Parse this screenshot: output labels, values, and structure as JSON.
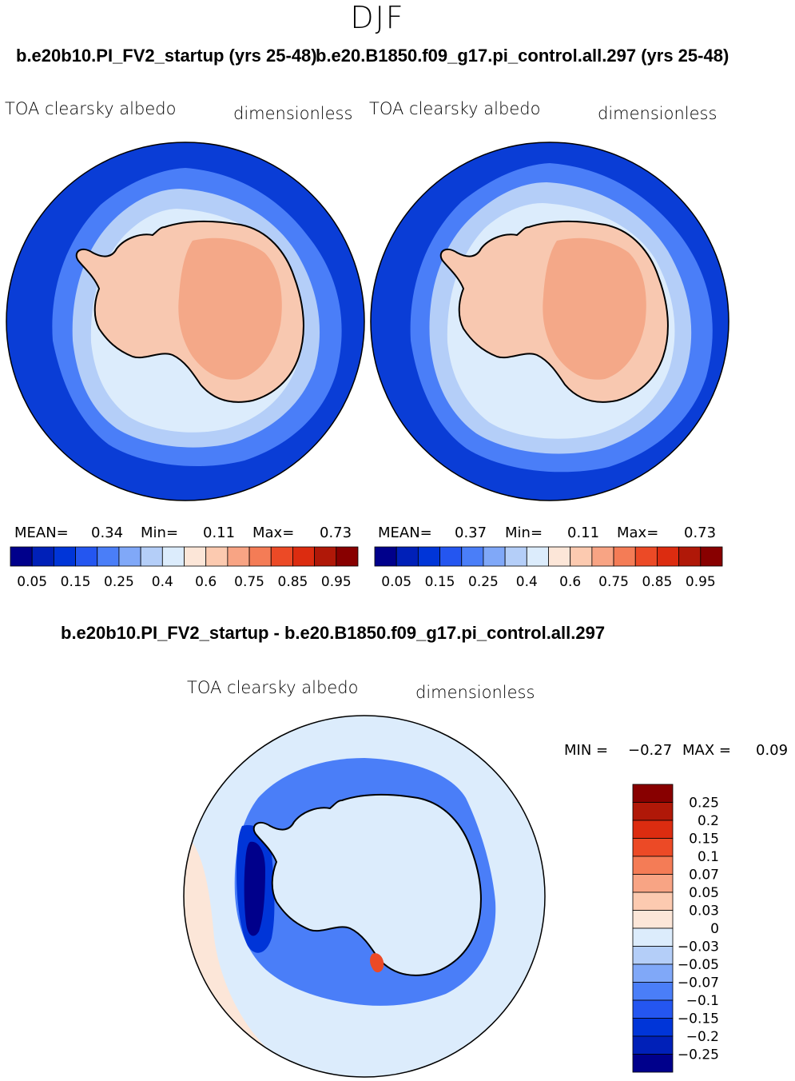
{
  "page": {
    "season": "DJF",
    "run1_title": "b.e20b10.PI_FV2_startup (yrs 25-48)",
    "run2_title": "b.e20.B1850.f09_g17.pi_control.all.297 (yrs 25-48)",
    "diff_title": "b.e20b10.PI_FV2_startup - b.e20.B1850.f09_g17.pi_control.all.297"
  },
  "chart_data": [
    {
      "type": "heatmap",
      "panel": "run1",
      "title": "b.e20b10.PI_FV2_startup (yrs 25-48)",
      "variable": "TOA clearsky albedo",
      "units": "dimensionless",
      "stats": {
        "mean_label": "MEAN=",
        "mean": "0.34",
        "min_label": "Min=",
        "min": "0.11",
        "max_label": "Max=",
        "max": "0.73"
      },
      "levels": [
        "0.05",
        "0.15",
        "0.25",
        "0.4",
        "0.6",
        "0.75",
        "0.85",
        "0.95"
      ],
      "colors": [
        "#00008b",
        "#0020b8",
        "#0035d8",
        "#2456f0",
        "#4a7ef8",
        "#80a8f8",
        "#b4cef8",
        "#dcecfc",
        "#fce6d8",
        "#fccab0",
        "#f8a484",
        "#f47c56",
        "#ec4a26",
        "#dc2c10",
        "#b01808",
        "#880000"
      ],
      "ocean_color": "#0a3dd6",
      "land_color": "#f8c8b0",
      "interior_color": "#f4a888"
    },
    {
      "type": "heatmap",
      "panel": "run2",
      "title": "b.e20.B1850.f09_g17.pi_control.all.297 (yrs 25-48)",
      "variable": "TOA clearsky albedo",
      "units": "dimensionless",
      "stats": {
        "mean_label": "MEAN=",
        "mean": "0.37",
        "min_label": "Min=",
        "min": "0.11",
        "max_label": "Max=",
        "max": "0.73"
      },
      "levels": [
        "0.05",
        "0.15",
        "0.25",
        "0.4",
        "0.6",
        "0.75",
        "0.85",
        "0.95"
      ],
      "colors": [
        "#00008b",
        "#0020b8",
        "#0035d8",
        "#2456f0",
        "#4a7ef8",
        "#80a8f8",
        "#b4cef8",
        "#dcecfc",
        "#fce6d8",
        "#fccab0",
        "#f8a484",
        "#f47c56",
        "#ec4a26",
        "#dc2c10",
        "#b01808",
        "#880000"
      ],
      "ocean_color": "#0a3dd6",
      "land_color": "#f8c8b0",
      "interior_color": "#f4a888"
    },
    {
      "type": "heatmap",
      "panel": "difference",
      "title": "b.e20b10.PI_FV2_startup - b.e20.B1850.f09_g17.pi_control.all.297",
      "variable": "TOA clearsky albedo",
      "units": "dimensionless",
      "stats": {
        "min_label": "MIN =",
        "min": "−0.27",
        "max_label": "MAX =",
        "max": "0.09"
      },
      "levels": [
        "0.25",
        "0.2",
        "0.15",
        "0.1",
        "0.07",
        "0.05",
        "0.03",
        "0",
        "−0.03",
        "−0.05",
        "−0.07",
        "−0.1",
        "−0.15",
        "−0.2",
        "−0.25"
      ],
      "colors": [
        "#880000",
        "#b01808",
        "#dc2c10",
        "#ec4a26",
        "#f47c56",
        "#f8a484",
        "#fccab0",
        "#fce6d8",
        "#dcecfc",
        "#b4cef8",
        "#80a8f8",
        "#4a7ef8",
        "#2456f0",
        "#0035d8",
        "#0020b8",
        "#00008b"
      ],
      "background_color": "#dcecfc"
    }
  ]
}
